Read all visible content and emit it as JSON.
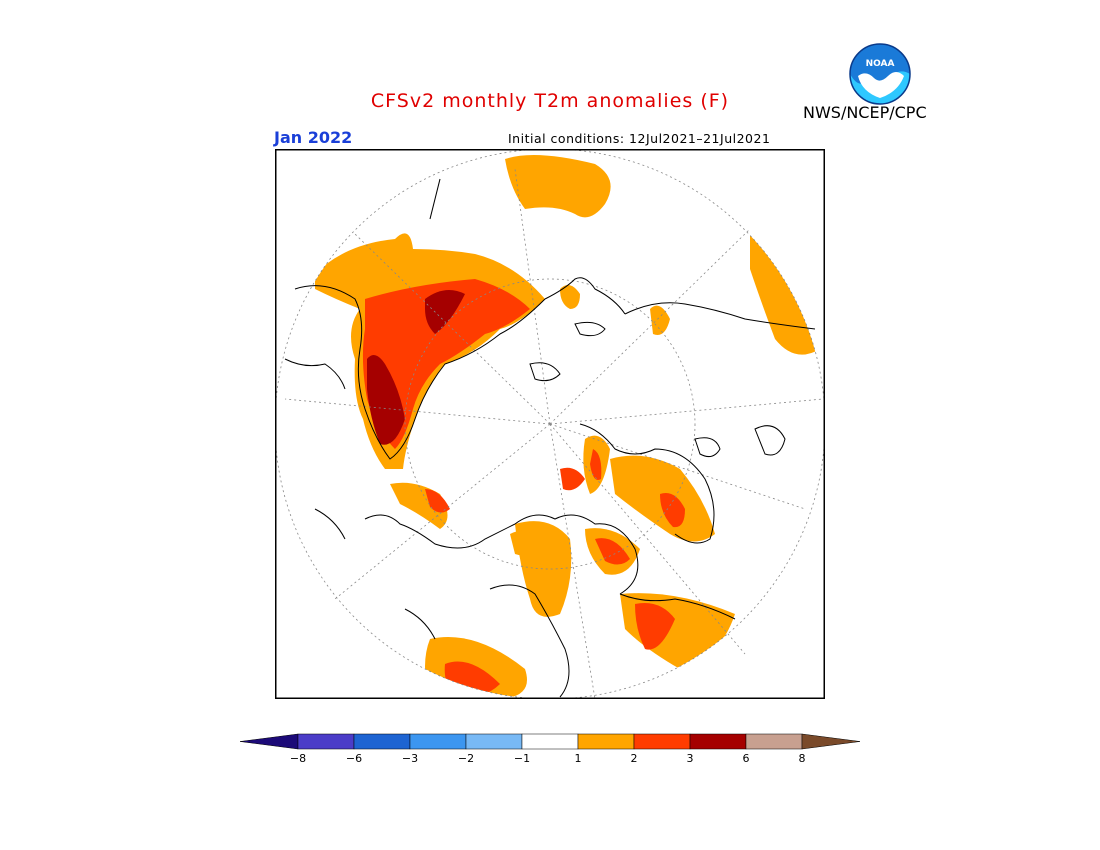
{
  "header": {
    "title": "CFSv2 monthly T2m anomalies (F)",
    "period": "Jan 2022",
    "initial_conditions": "Initial conditions: 12Jul2021–21Jul2021",
    "organization": "NWS/NCEP/CPC",
    "logo_text": "NOAA"
  },
  "legend": {
    "levels": [
      "−8",
      "−6",
      "−3",
      "−2",
      "−1",
      "1",
      "2",
      "3",
      "6",
      "8"
    ],
    "colors": [
      "#1c0a78",
      "#4b3cc8",
      "#1e64d2",
      "#3c96f0",
      "#78b9f5",
      "#ffffff",
      "#ffa500",
      "#ff3c00",
      "#a50000",
      "#c8a090",
      "#7a4a2a"
    ]
  },
  "map": {
    "projection": "north polar stereographic",
    "anomaly_colors": {
      "plus_1_2": "#ffa500",
      "plus_2_3": "#ff3c00",
      "plus_3_6": "#a50000"
    }
  }
}
